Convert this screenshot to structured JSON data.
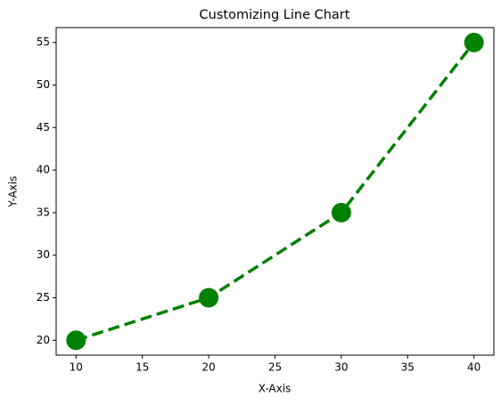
{
  "chart_data": {
    "type": "line",
    "title": "Customizing Line Chart",
    "x_label": "X-Axis",
    "y_label": "Y-Axis",
    "x": [
      10,
      20,
      30,
      40
    ],
    "values": [
      20,
      25,
      35,
      55
    ],
    "color": "#008000",
    "line_style": "dashed",
    "marker": "circle",
    "xlim": [
      8.5,
      41.5
    ],
    "xticks": [
      10,
      15,
      20,
      25,
      30,
      35,
      40
    ],
    "ylim": [
      18.25,
      56.75
    ],
    "yticks": [
      20,
      25,
      30,
      35,
      40,
      45,
      50,
      55
    ],
    "grid": false
  }
}
